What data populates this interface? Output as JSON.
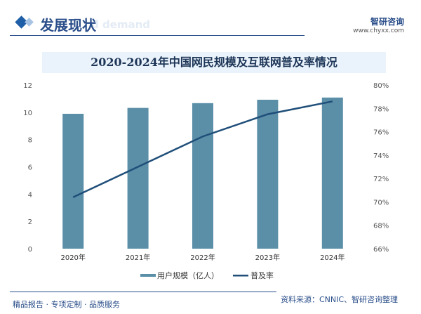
{
  "header": {
    "title": "发展现状",
    "ghost_text": "d demand",
    "brand": "智研咨询",
    "url": "www.chyxx.com"
  },
  "footer": {
    "tagline": "精品报告 · 专项定制 · 品质服务",
    "source": "资料来源：CNNIC、智研咨询整理"
  },
  "colors": {
    "bar": "#5b8fa8",
    "line": "#1f4e79",
    "header": "#2a4e8a"
  },
  "chart_data": {
    "type": "bar+line",
    "title": "2020-2024年中国网民规模及互联网普及率情况",
    "categories": [
      "2020年",
      "2021年",
      "2022年",
      "2023年",
      "2024年"
    ],
    "series": [
      {
        "name": "用户规模（亿人）",
        "type": "bar",
        "axis": "left",
        "values": [
          9.89,
          10.32,
          10.67,
          10.92,
          11.08
        ]
      },
      {
        "name": "普及率",
        "type": "line",
        "axis": "right",
        "values": [
          70.4,
          73.0,
          75.6,
          77.5,
          78.6
        ]
      }
    ],
    "ylim": [
      0,
      12
    ],
    "yticks": [
      "0",
      "2",
      "4",
      "6",
      "8",
      "10",
      "12"
    ],
    "y2lim": [
      66,
      80
    ],
    "y2ticks": [
      "66%",
      "68%",
      "70%",
      "72%",
      "74%",
      "76%",
      "78%",
      "80%"
    ],
    "legend": "bottom",
    "grid": false
  }
}
